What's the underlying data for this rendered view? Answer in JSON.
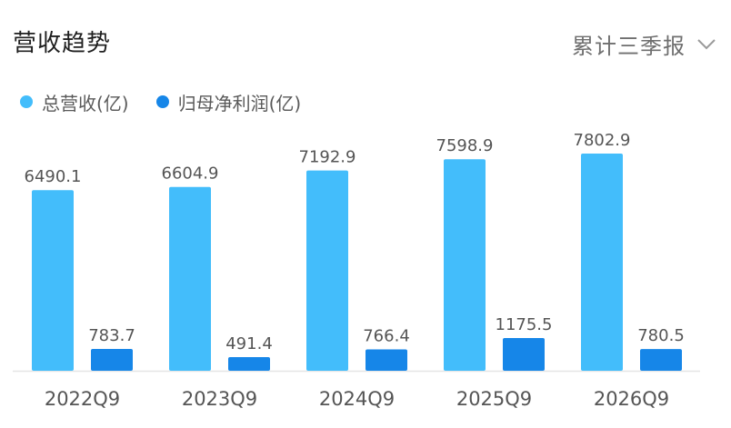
{
  "header": {
    "title": "营收趋势",
    "period_selector": "累计三季报",
    "period_icon": "chevron-down-icon"
  },
  "chart_data": {
    "type": "bar",
    "categories": [
      "2022Q9",
      "2023Q9",
      "2024Q9",
      "2025Q9",
      "2026Q9"
    ],
    "series": [
      {
        "name": "总营收(亿)",
        "color": "#43bdfb",
        "values": [
          6490.1,
          6604.9,
          7192.9,
          7598.9,
          7802.9
        ]
      },
      {
        "name": "归母净利润(亿)",
        "color": "#1686e8",
        "values": [
          783.7,
          491.4,
          766.4,
          1175.5,
          780.5
        ]
      }
    ],
    "title": "营收趋势",
    "xlabel": "",
    "ylabel": "",
    "grid": false,
    "legend_position": "top-left",
    "axis_color": "#e6e6e6",
    "label_color": "#555555"
  }
}
